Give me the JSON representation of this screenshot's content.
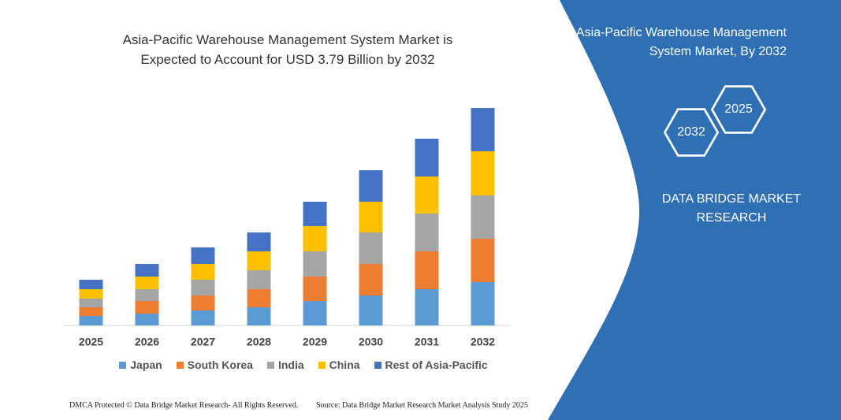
{
  "chart_data": {
    "type": "stacked_bar",
    "title": "Asia-Pacific Warehouse Management System Market is Expected to Account for USD 3.79 Billion by 2032",
    "categories": [
      "2025",
      "2026",
      "2027",
      "2028",
      "2029",
      "2030",
      "2031",
      "2032"
    ],
    "series": [
      {
        "name": "Japan",
        "color": "#5b9bd5",
        "values": [
          12,
          15,
          19,
          23,
          31,
          38,
          46,
          55
        ]
      },
      {
        "name": "South Korea",
        "color": "#ed7d31",
        "values": [
          11,
          16,
          19,
          23,
          31,
          40,
          48,
          55
        ]
      },
      {
        "name": "India",
        "color": "#a5a5a5",
        "values": [
          11,
          15,
          20,
          24,
          32,
          40,
          48,
          55
        ]
      },
      {
        "name": "China",
        "color": "#ffc000",
        "values": [
          12,
          16,
          20,
          24,
          32,
          39,
          47,
          56
        ]
      },
      {
        "name": "Rest of Asia-Pacific",
        "color": "#4472c4",
        "values": [
          12,
          16,
          21,
          24,
          31,
          40,
          48,
          55
        ]
      }
    ]
  },
  "panel": {
    "title": "Asia-Pacific Warehouse Management System Market, By 2032",
    "hexagons": [
      "2025",
      "2032"
    ],
    "brand": "DATA BRIDGE MARKET RESEARCH"
  },
  "footer": {
    "left": "DMCA Protected © Data Bridge Market Research-  All Rights Reserved.",
    "right": "Source: Data Bridge Market Research  Market Analysis Study 2025"
  }
}
